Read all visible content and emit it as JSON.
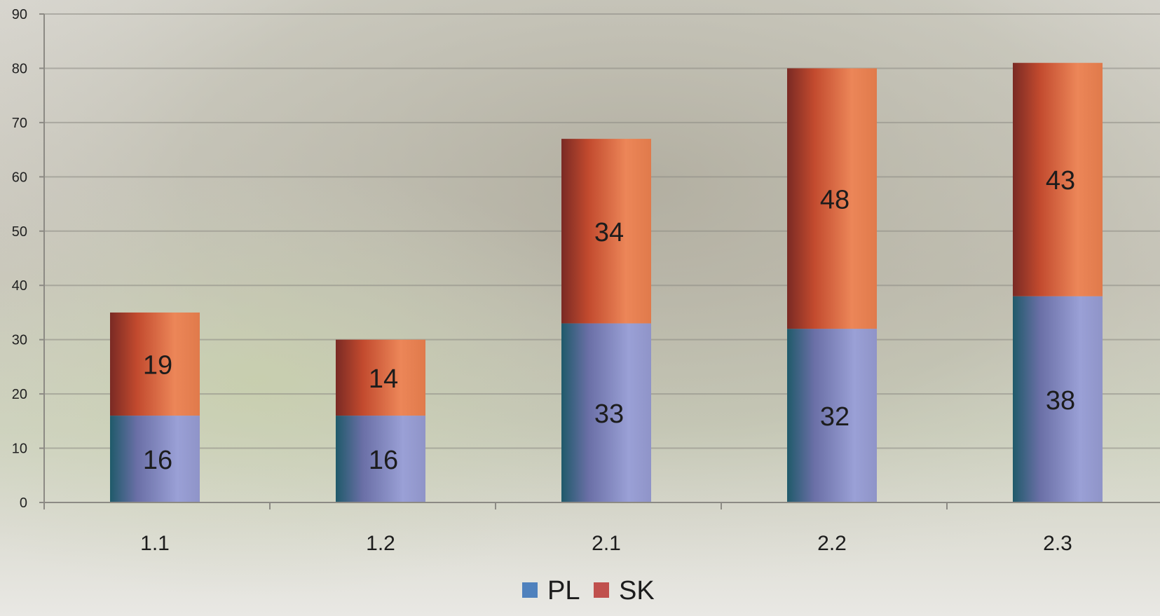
{
  "chart_data": {
    "type": "bar",
    "stacked": true,
    "categories": [
      "1.1",
      "1.2",
      "2.1",
      "2.2",
      "2.3"
    ],
    "series": [
      {
        "name": "PL",
        "values": [
          16,
          16,
          33,
          32,
          38
        ],
        "color": "#8F94C8"
      },
      {
        "name": "SK",
        "values": [
          19,
          14,
          34,
          48,
          43
        ],
        "color": "#E26C3E"
      }
    ],
    "ylim": [
      0,
      90
    ],
    "yticks": [
      0,
      10,
      20,
      30,
      40,
      50,
      60,
      70,
      80,
      90
    ],
    "grid": true,
    "legend": "bottom-center",
    "legend_colors": {
      "PL": "#4F81BD",
      "SK": "#C0504D"
    },
    "background": "faded mountain landscape photo"
  }
}
